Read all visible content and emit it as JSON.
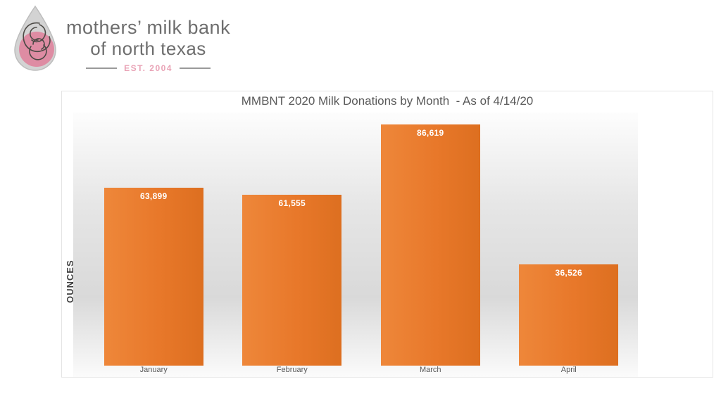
{
  "logo": {
    "line1": "mothers’ milk bank",
    "line2": "of north texas",
    "established": "EST. 2004",
    "drop_color": "#d3d3d3",
    "drop_outline_color": "#bdbdbd",
    "circle_color": "#de8ca3",
    "art_line_color": "#4d4a46",
    "text_color": "#6e6e6e",
    "est_color": "#e9a3b6"
  },
  "chart": {
    "title_display": "MMBNT 2020 Milk Donations by Month  - As of 4/14/20",
    "y_axis_label": "OUNCES",
    "bar_color": "#e8782a",
    "data_label_color": "#ffffff",
    "title_color": "#595959",
    "category_label_color": "#595959"
  },
  "chart_data": {
    "type": "bar",
    "title": "MMBNT 2020 Milk Donations by Month - As of 4/14/20",
    "categories": [
      "January",
      "February",
      "March",
      "April"
    ],
    "values": [
      63899,
      61555,
      86619,
      36526
    ],
    "value_labels": [
      "63,899",
      "61,555",
      "86,619",
      "36,526"
    ],
    "xlabel": "",
    "ylabel": "OUNCES",
    "ylim": [
      0,
      90000
    ],
    "grid": false,
    "legend": false,
    "data_labels_position": "inside-end",
    "y_axis_ticks_visible": false
  }
}
